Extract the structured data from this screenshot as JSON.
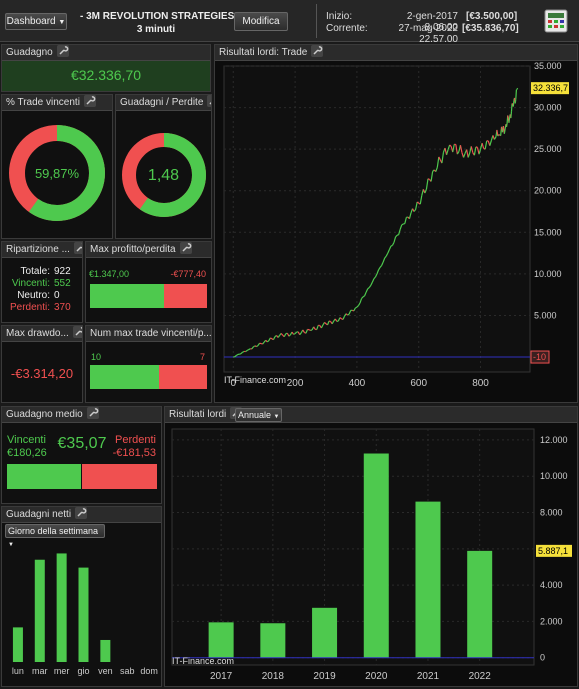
{
  "header": {
    "dashboard_btn": "Dashboard",
    "strategy_title": "- 3M  REVOLUTION STRATEGIES",
    "timeframe": "3 minuti",
    "modifica_btn": "Modifica",
    "inizio_label": "Inizio:",
    "inizio_date": "2-gen-2017 8.06.00",
    "inizio_value": "[€3.500,00]",
    "corrente_label": "Corrente:",
    "corrente_date": "27-mag-2022 22.57.00",
    "corrente_value": "[€35.836,70]",
    "settings_icon": "calculator-settings-icon"
  },
  "guadagno": {
    "title": "Guadagno",
    "value": "€32.336,70"
  },
  "trade_vincenti": {
    "title": "% Trade vincenti",
    "value": "59,87%",
    "fraction": 0.5987
  },
  "guadagni_perdite": {
    "title": "Guadagni / Perdite",
    "value": "1,48",
    "fraction": 0.597
  },
  "ripartizione": {
    "title": "Ripartizione ...",
    "totale_label": "Totale:",
    "totale": "922",
    "vincenti_label": "Vincenti:",
    "vincenti": "552",
    "neutro_label": "Neutro:",
    "neutro": "0",
    "perdenti_label": "Perdenti:",
    "perdenti": "370"
  },
  "max_profitto": {
    "title": "Max profitto/perdita",
    "profit": "€1.347,00",
    "loss": "-€777,40",
    "profit_fraction": 0.634
  },
  "max_drawdown": {
    "title": "Max drawdo...",
    "value": "-€3.314,20"
  },
  "num_max_trade": {
    "title": "Num max trade vincenti/p...",
    "vincenti": "10",
    "perdenti": "7",
    "vincenti_fraction": 0.588
  },
  "guadagno_medio": {
    "title": "Guadagno medio",
    "vincenti_label": "Vincenti",
    "vincenti": "€180,26",
    "value": "€35,07",
    "perdenti_label": "Perdenti",
    "perdenti": "-€181,53",
    "vincenti_fraction": 0.498
  },
  "guadagni_netti": {
    "title": "Guadagni netti",
    "selector": "Giorno della settimana"
  },
  "risultati_trade": {
    "title": "Risultati lordi: Trade",
    "watermark": "IT-Finance.com",
    "last_tag": "32.336,7",
    "zero_tag": "-10"
  },
  "risultati_annuale": {
    "title": "Risultati lordi",
    "selector": "Annuale",
    "watermark": "IT-Finance.com",
    "last_tag": "5.887,1"
  },
  "colors": {
    "green": "#4ec94e",
    "red": "#f05050",
    "bg": "#101010",
    "zero_line": "#3030c0"
  },
  "chart_data": [
    {
      "type": "line",
      "title": "Risultati lordi: Trade",
      "x": [
        0,
        50,
        100,
        150,
        200,
        250,
        300,
        350,
        400,
        450,
        500,
        550,
        600,
        650,
        700,
        750,
        800,
        850,
        880,
        900,
        920
      ],
      "y": [
        0,
        900,
        1800,
        2600,
        2800,
        3200,
        4000,
        4600,
        6000,
        9000,
        12500,
        16000,
        18500,
        22500,
        25500,
        24500,
        25000,
        26500,
        27500,
        29500,
        32336.7
      ],
      "xlim": [
        -30,
        960
      ],
      "ylim": [
        -1800,
        35000
      ],
      "xticks": [
        0,
        200,
        400,
        600,
        800
      ],
      "yticks": [
        5000,
        10000,
        15000,
        20000,
        25000,
        30000,
        35000
      ],
      "ytick_labels": [
        "5.000",
        "10.000",
        "15.000",
        "20.000",
        "25.000",
        "30.000",
        "35.000"
      ]
    },
    {
      "type": "bar",
      "title": "Risultati lordi",
      "categories": [
        "2017",
        "2018",
        "2019",
        "2020",
        "2021",
        "2022"
      ],
      "values": [
        1950,
        1900,
        2750,
        11250,
        8600,
        5887.1
      ],
      "ylim": [
        -400,
        12600
      ],
      "yticks": [
        0,
        2000,
        4000,
        6000,
        8000,
        10000,
        12000
      ],
      "ytick_labels": [
        "0",
        "2.000",
        "4.000",
        "6.000",
        "8.000",
        "10.000",
        "12.000"
      ]
    },
    {
      "type": "bar",
      "title": "Guadagni netti",
      "categories": [
        "lun",
        "mar",
        "mer",
        "gio",
        "ven",
        "sab",
        "dom"
      ],
      "values": [
        2.2,
        6.5,
        6.9,
        6.0,
        1.4,
        0,
        0
      ],
      "ylim": [
        0,
        7.5
      ]
    }
  ]
}
